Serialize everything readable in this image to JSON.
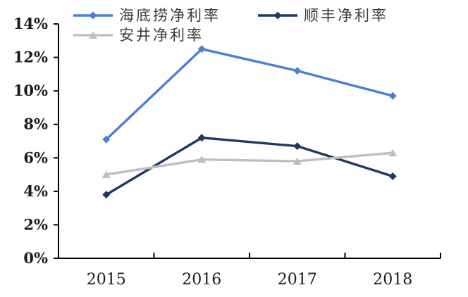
{
  "chart_data": {
    "type": "line",
    "title": "",
    "xlabel": "",
    "ylabel": "",
    "categories": [
      "2015",
      "2016",
      "2017",
      "2018"
    ],
    "series": [
      {
        "name": "海底捞净利率",
        "color": "#4A7FD8",
        "marker": "diamond",
        "values": [
          7.1,
          12.5,
          11.2,
          9.7
        ]
      },
      {
        "name": "顺丰净利率",
        "color": "#1F3864",
        "marker": "diamond",
        "values": [
          3.8,
          7.2,
          6.7,
          4.9
        ]
      },
      {
        "name": "安井净利率",
        "color": "#BFBFBF",
        "marker": "triangle",
        "values": [
          5.0,
          5.9,
          5.8,
          6.3
        ]
      }
    ],
    "ylim": [
      0,
      14
    ],
    "ytick_step": 2,
    "ytick_suffix": "%",
    "grid": false,
    "legend_position": "top-left",
    "axis_color": "#000000",
    "label_color": "#1a1a1a",
    "background": "#FFFFFF"
  }
}
